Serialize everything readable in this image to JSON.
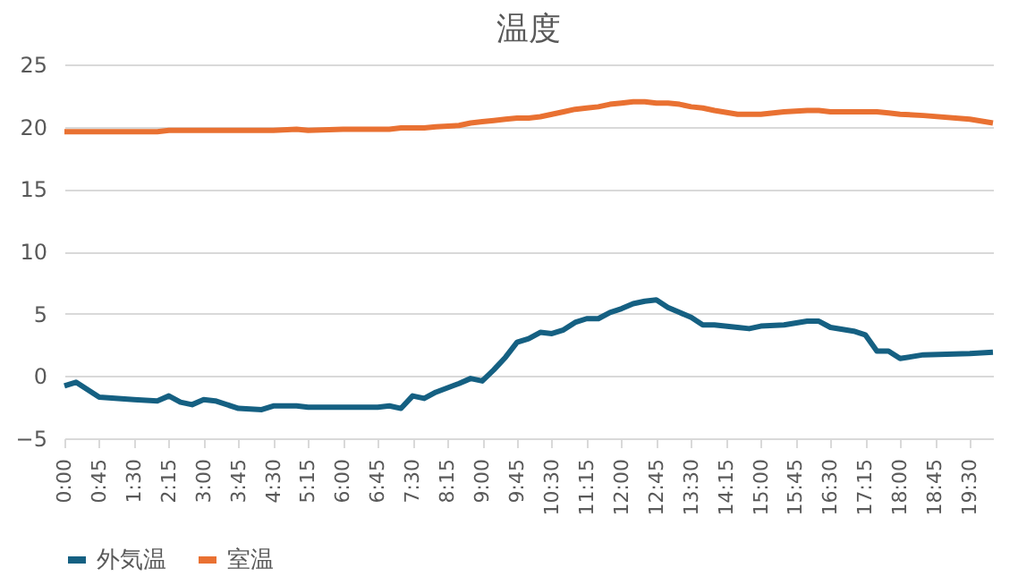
{
  "chart_data": {
    "type": "line",
    "title": "温度",
    "x": [
      0,
      0.25,
      0.75,
      1.5,
      2,
      2.25,
      2.5,
      2.75,
      3,
      3.25,
      3.75,
      4.25,
      4.5,
      5,
      5.25,
      6,
      6.75,
      7,
      7.25,
      7.5,
      7.75,
      8,
      8.5,
      8.75,
      9,
      9.25,
      9.5,
      9.75,
      10,
      10.25,
      10.5,
      10.75,
      11,
      11.25,
      11.5,
      11.75,
      12,
      12.25,
      12.5,
      12.75,
      13,
      13.25,
      13.5,
      13.75,
      14,
      14.5,
      14.75,
      15,
      15.5,
      16,
      16.25,
      16.5,
      17,
      17.25,
      17.5,
      17.75,
      18,
      18.5,
      19.5,
      20
    ],
    "series": [
      {
        "name": "外気温",
        "color": "#156082",
        "values": [
          -0.8,
          -0.5,
          -1.7,
          -1.9,
          -2.0,
          -1.6,
          -2.1,
          -2.3,
          -1.9,
          -2.0,
          -2.6,
          -2.7,
          -2.4,
          -2.4,
          -2.5,
          -2.5,
          -2.5,
          -2.4,
          -2.6,
          -1.6,
          -1.8,
          -1.3,
          -0.6,
          -0.2,
          -0.4,
          0.5,
          1.5,
          2.7,
          3.0,
          3.5,
          3.4,
          3.7,
          4.3,
          4.6,
          4.6,
          5.1,
          5.4,
          5.8,
          6.0,
          6.1,
          5.5,
          5.1,
          4.7,
          4.1,
          4.1,
          3.9,
          3.8,
          4.0,
          4.1,
          4.4,
          4.4,
          3.9,
          3.6,
          3.3,
          2.0,
          2.0,
          1.4,
          1.7,
          1.8,
          1.9
        ]
      },
      {
        "name": "室温",
        "color": "#e97132",
        "values": [
          19.6,
          19.6,
          19.6,
          19.6,
          19.6,
          19.7,
          19.7,
          19.7,
          19.7,
          19.7,
          19.7,
          19.7,
          19.7,
          19.8,
          19.7,
          19.8,
          19.8,
          19.8,
          19.9,
          19.9,
          19.9,
          20.0,
          20.1,
          20.3,
          20.4,
          20.5,
          20.6,
          20.7,
          20.7,
          20.8,
          21.0,
          21.2,
          21.4,
          21.5,
          21.6,
          21.8,
          21.9,
          22.0,
          22.0,
          21.9,
          21.9,
          21.8,
          21.6,
          21.5,
          21.3,
          21.0,
          21.0,
          21.0,
          21.2,
          21.3,
          21.3,
          21.2,
          21.2,
          21.2,
          21.2,
          21.1,
          21.0,
          20.9,
          20.6,
          20.3
        ]
      }
    ],
    "xlim": [
      0,
      20
    ],
    "xticks": [
      {
        "value": 0,
        "label": "0:00"
      },
      {
        "value": 0.75,
        "label": "0:45"
      },
      {
        "value": 1.5,
        "label": "1:30"
      },
      {
        "value": 2.25,
        "label": "2:15"
      },
      {
        "value": 3,
        "label": "3:00"
      },
      {
        "value": 3.75,
        "label": "3:45"
      },
      {
        "value": 4.5,
        "label": "4:30"
      },
      {
        "value": 5.25,
        "label": "5:15"
      },
      {
        "value": 6,
        "label": "6:00"
      },
      {
        "value": 6.75,
        "label": "6:45"
      },
      {
        "value": 7.5,
        "label": "7:30"
      },
      {
        "value": 8.25,
        "label": "8:15"
      },
      {
        "value": 9,
        "label": "9:00"
      },
      {
        "value": 9.75,
        "label": "9:45"
      },
      {
        "value": 10.5,
        "label": "10:30"
      },
      {
        "value": 11.25,
        "label": "11:15"
      },
      {
        "value": 12,
        "label": "12:00"
      },
      {
        "value": 12.75,
        "label": "12:45"
      },
      {
        "value": 13.5,
        "label": "13:30"
      },
      {
        "value": 14.25,
        "label": "14:15"
      },
      {
        "value": 15,
        "label": "15:00"
      },
      {
        "value": 15.75,
        "label": "15:45"
      },
      {
        "value": 16.5,
        "label": "16:30"
      },
      {
        "value": 17.25,
        "label": "17:15"
      },
      {
        "value": 18,
        "label": "18:00"
      },
      {
        "value": 18.75,
        "label": "18:45"
      },
      {
        "value": 19.5,
        "label": "19:30"
      }
    ],
    "ylim": [
      -5,
      25
    ],
    "yticks": [
      -5,
      0,
      5,
      10,
      15,
      20,
      25
    ],
    "grid": "y",
    "legend": "bottom",
    "marker": "none",
    "line_style": "solid"
  }
}
